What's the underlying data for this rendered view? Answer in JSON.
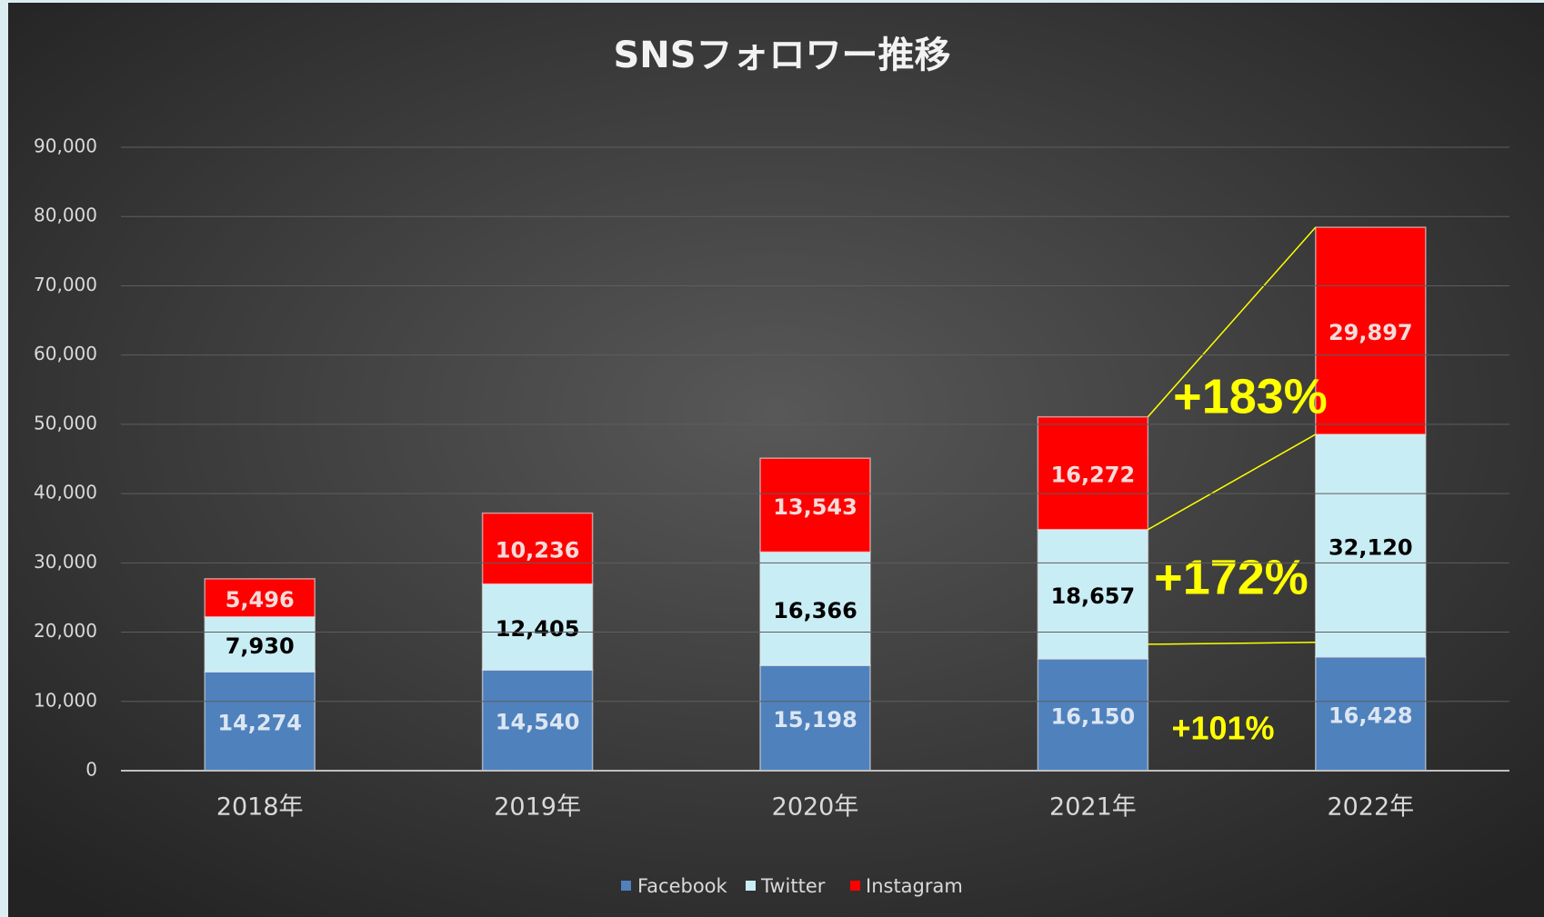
{
  "chart_data": {
    "type": "bar",
    "stacked": true,
    "title": "SNSフォロワー推移",
    "categories": [
      "2018年",
      "2019年",
      "2020年",
      "2021年",
      "2022年"
    ],
    "series": [
      {
        "name": "Facebook",
        "color": "#4f81bd",
        "label_color": "#dce6f2",
        "values": [
          14274,
          14540,
          15198,
          16150,
          16428
        ],
        "value_labels": [
          "14,274",
          "14,540",
          "15,198",
          "16,150",
          "16,428"
        ]
      },
      {
        "name": "Twitter",
        "color": "#c9edf5",
        "label_color": "#000000",
        "values": [
          7930,
          12405,
          16366,
          18657,
          32120
        ],
        "value_labels": [
          "7,930",
          "12,405",
          "16,366",
          "18,657",
          "32,120"
        ]
      },
      {
        "name": "Instagram",
        "color": "#ff0000",
        "label_color": "#f2dcdb",
        "values": [
          5496,
          10236,
          13543,
          16272,
          29897
        ],
        "value_labels": [
          "5,496",
          "10,236",
          "13,543",
          "16,272",
          "29,897"
        ]
      }
    ],
    "ylim": [
      0,
      90000
    ],
    "yticks": [
      0,
      {
        "value": 10000,
        "label": "10,000"
      },
      {
        "value": 20000,
        "label": "20,000"
      },
      {
        "value": 30000,
        "label": "30,000"
      },
      {
        "value": 40000,
        "label": "40,000"
      },
      {
        "value": 50000,
        "label": "50,000"
      },
      {
        "value": 60000,
        "label": "60,000"
      },
      {
        "value": 70000,
        "label": "70,000"
      },
      {
        "value": 80000,
        "label": "80,000"
      },
      {
        "value": 90000,
        "label": "90,000"
      }
    ],
    "grid": true,
    "legend": "bottom",
    "annotations": [
      "+183%",
      "+172%",
      "+101%"
    ]
  }
}
